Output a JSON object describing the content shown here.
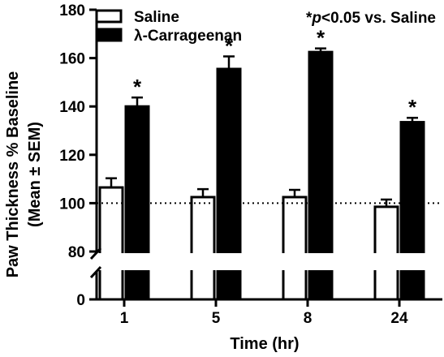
{
  "chart_data": {
    "type": "bar",
    "categories": [
      "1",
      "5",
      "8",
      "24"
    ],
    "series": [
      {
        "name": "Saline",
        "values": [
          106.5,
          102.5,
          102.5,
          98.5
        ],
        "errors": [
          3.8,
          3.3,
          3.0,
          3.0
        ],
        "fill": "#ffffff",
        "stroke": "#000000"
      },
      {
        "name": "λ-Carrageenan",
        "values": [
          140,
          155.5,
          162.5,
          133.5
        ],
        "errors": [
          3.7,
          5.2,
          1.5,
          1.8
        ],
        "fill": "#000000",
        "stroke": "#000000"
      }
    ],
    "significance": [
      "*",
      "*",
      "*",
      "*"
    ],
    "ylabel_line1": "Paw Thickness % Baseline",
    "ylabel_line2": "(Mean ± SEM)",
    "xlabel": "Time (hr)",
    "yticks": [
      "0",
      "80",
      "100",
      "120",
      "140",
      "160",
      "180"
    ],
    "ylim_upper": [
      80,
      180
    ],
    "ylim_lower": [
      0,
      80
    ],
    "axis_break": true,
    "reference_line": 100,
    "legend_position": "top-left",
    "note": {
      "prefix": "*",
      "italic": "p",
      "rest": "<0.05 vs. Saline"
    }
  }
}
